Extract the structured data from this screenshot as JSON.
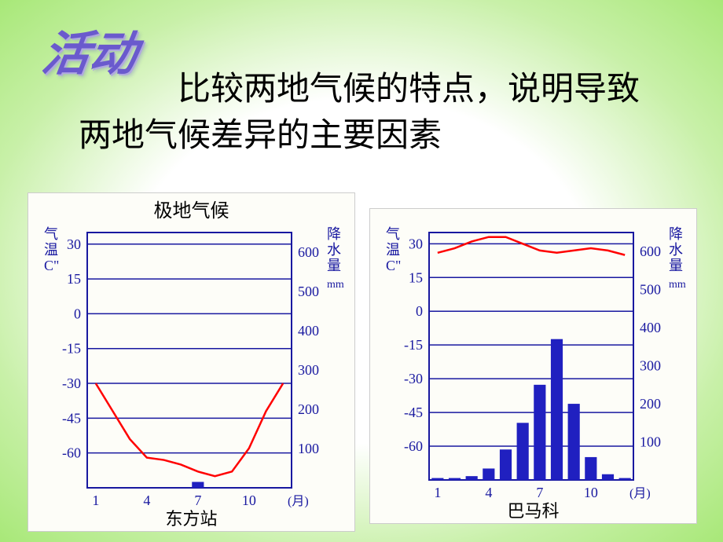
{
  "activity_label": "活动",
  "main_text": "　　　比较两地气候的特点，说明导致两地气候差异的主要因素",
  "colors": {
    "bg_inner": "#ffffff",
    "bg_outer": "#a8e878",
    "activity_color": "#6a5acd",
    "chart_bg": "#fdfdf8",
    "axis_color": "#1818a0",
    "grid_color": "#1818a0",
    "temp_line_color": "#ff0000",
    "bar_color": "#2020c0",
    "text_color": "#1818a0"
  },
  "chart1": {
    "title": "极地气候",
    "station": "东方站",
    "temp_label": "气温C\"",
    "precip_label": "降水量",
    "precip_unit": "mm",
    "x_label": "(月)",
    "temp_ticks": [
      30,
      15,
      0,
      -15,
      -30,
      -45,
      -60
    ],
    "precip_ticks": [
      600,
      500,
      400,
      300,
      200,
      100
    ],
    "x_ticks": [
      1,
      4,
      7,
      10
    ],
    "temp_values": [
      -30,
      -42,
      -54,
      -62,
      -63,
      -65,
      -68,
      -70,
      -68,
      -58,
      -42,
      -30
    ],
    "precip_values": [
      0,
      0,
      0,
      0,
      0,
      0,
      15,
      0,
      0,
      0,
      0,
      0
    ],
    "temp_ylim": [
      -75,
      35
    ],
    "precip_ylim": [
      0,
      650
    ]
  },
  "chart2": {
    "title": "",
    "station": "巴马科",
    "temp_label": "气温C\"",
    "precip_label": "降水量",
    "precip_unit": "mm",
    "x_label": "(月)",
    "temp_ticks": [
      30,
      15,
      0,
      -15,
      -30,
      -45,
      -60
    ],
    "precip_ticks": [
      600,
      500,
      400,
      300,
      200,
      100
    ],
    "x_ticks": [
      1,
      4,
      7,
      10
    ],
    "temp_values": [
      26,
      28,
      31,
      33,
      33,
      30,
      27,
      26,
      27,
      28,
      27,
      25
    ],
    "precip_values": [
      5,
      5,
      10,
      30,
      80,
      150,
      250,
      370,
      200,
      60,
      15,
      5
    ],
    "temp_ylim": [
      -75,
      35
    ],
    "precip_ylim": [
      0,
      650
    ]
  }
}
